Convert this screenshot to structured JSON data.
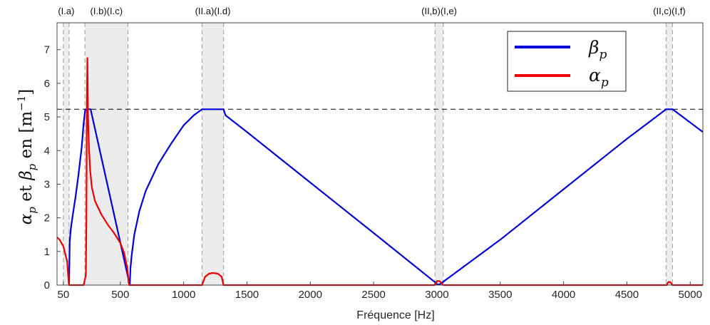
{
  "chart_data": {
    "type": "line",
    "xlabel": "Fréquence [Hz]",
    "ylabel": {
      "a": "α",
      "a_sub": "p",
      "mid": " et ",
      "b": "β",
      "b_sub": "p",
      "unit": " en [m",
      "unit_exp": "−1",
      "close": "]"
    },
    "xlim": [
      0,
      5100
    ],
    "ylim": [
      0,
      7.8
    ],
    "x_ticks": [
      50,
      500,
      1000,
      1500,
      2000,
      2500,
      3000,
      3500,
      4000,
      4500,
      5000
    ],
    "x_tick_labels": [
      "50",
      "500",
      "1000",
      "1500",
      "2000",
      "2500",
      "3000",
      "3500",
      "4000",
      "4500",
      "5000"
    ],
    "y_ticks": [
      0,
      1,
      2,
      3,
      4,
      5,
      6,
      7
    ],
    "y_tick_labels": [
      "0",
      "1",
      "2",
      "3",
      "4",
      "5",
      "6",
      "7"
    ],
    "grid": false,
    "legend_position": "top-right",
    "reference_line": {
      "y": 5.23,
      "style": "dashed",
      "color": "#000000"
    },
    "bands": [
      {
        "x0": 50,
        "x1": 95,
        "label": "(I.a)"
      },
      {
        "x0": 220,
        "x1": 560,
        "label": "(I.b)(I.c)"
      },
      {
        "x0": 1145,
        "x1": 1315,
        "label": "(II.a)(I.d)"
      },
      {
        "x0": 2985,
        "x1": 3050,
        "label": "(II,b)(I,e)"
      },
      {
        "x0": 4810,
        "x1": 4860,
        "label": "(II,c)(I,f)"
      }
    ],
    "series": [
      {
        "name": "β",
        "name_sub": "p",
        "color": "#0000dd",
        "x": [
          95,
          100,
          110,
          125,
          145,
          170,
          195,
          210,
          222,
          230,
          255,
          265,
          575,
          580,
          590,
          610,
          650,
          700,
          800,
          900,
          1000,
          1080,
          1145,
          1315,
          1330,
          1500,
          2000,
          2500,
          2980,
          3000,
          3020,
          3050,
          3500,
          4000,
          4500,
          4810,
          4835,
          4860,
          5100
        ],
        "y": [
          0,
          1.3,
          1.7,
          2.1,
          2.6,
          3.3,
          4.1,
          4.8,
          5.2,
          5.23,
          5.23,
          5.23,
          0,
          0.5,
          0.9,
          1.5,
          2.2,
          2.8,
          3.6,
          4.2,
          4.75,
          5.05,
          5.23,
          5.23,
          5.05,
          4.55,
          3.05,
          1.55,
          0.1,
          0.02,
          0.02,
          0.1,
          1.35,
          2.85,
          4.35,
          5.23,
          5.23,
          5.23,
          4.55
        ]
      },
      {
        "name": "α",
        "name_sub": "p",
        "color": "#ee0000",
        "x": [
          0,
          20,
          50,
          80,
          93,
          96,
          150,
          210,
          228,
          232,
          236,
          240,
          245,
          252,
          262,
          275,
          300,
          350,
          400,
          450,
          500,
          530,
          555,
          565,
          570,
          700,
          1100,
          1145,
          1170,
          1200,
          1230,
          1270,
          1300,
          1315,
          1330,
          2980,
          3000,
          3020,
          3050,
          4815,
          4825,
          4835,
          4845,
          4860,
          5100
        ],
        "y": [
          1.42,
          1.35,
          1.15,
          0.7,
          0.05,
          0,
          0,
          0,
          0.3,
          2.0,
          5.5,
          6.75,
          5.0,
          4.1,
          3.4,
          2.9,
          2.5,
          2.1,
          1.8,
          1.55,
          1.25,
          0.95,
          0.5,
          0.12,
          0,
          0,
          0,
          0,
          0.25,
          0.34,
          0.36,
          0.34,
          0.25,
          0,
          0,
          0,
          0.12,
          0.12,
          0,
          0,
          0.08,
          0.1,
          0.08,
          0,
          0
        ]
      }
    ]
  }
}
